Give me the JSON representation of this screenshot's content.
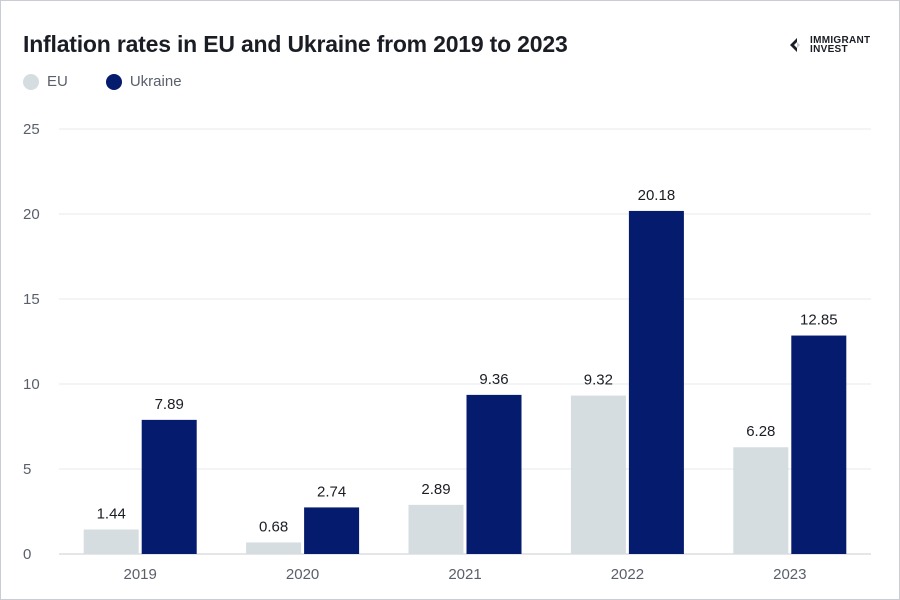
{
  "title": "Inflation rates in EU and Ukraine from 2019 to 2023",
  "logo": {
    "text": "IMMIGRANT\nINVEST",
    "icon": "immigrant-invest-logo-icon"
  },
  "colors": {
    "eu": "#d5dde1",
    "ukraine": "#051b6e",
    "grid": "#e6e8eb",
    "axis": "#c9ccd2"
  },
  "legend": [
    {
      "label": "EU",
      "series": "eu"
    },
    {
      "label": "Ukraine",
      "series": "ukraine"
    }
  ],
  "chart_data": {
    "type": "bar",
    "title": "Inflation rates in EU and Ukraine from 2019 to 2023",
    "categories": [
      "2019",
      "2020",
      "2021",
      "2022",
      "2023"
    ],
    "series": [
      {
        "name": "EU",
        "key": "eu",
        "values": [
          1.44,
          0.68,
          2.89,
          9.32,
          6.28
        ],
        "labels": [
          "1.44",
          "0.68",
          "2.89",
          "9.32",
          "6.28"
        ]
      },
      {
        "name": "Ukraine",
        "key": "ukraine",
        "values": [
          7.89,
          2.74,
          9.36,
          20.18,
          12.85
        ],
        "labels": [
          "7.89",
          "2.74",
          "9.36",
          "20.18",
          "12.85"
        ]
      }
    ],
    "ylim": [
      0,
      25
    ],
    "yticks": [
      0,
      5,
      10,
      15,
      20,
      25
    ],
    "xlabel": "",
    "ylabel": "",
    "grid": true,
    "legend_position": "top-left"
  }
}
